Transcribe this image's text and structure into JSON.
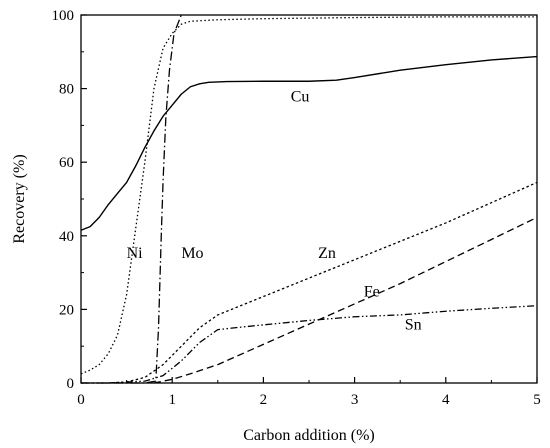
{
  "chart_data": {
    "type": "line",
    "title": "",
    "xlabel": "Carbon addition (%)",
    "ylabel": "Recovery (%)",
    "xlim": [
      0,
      5
    ],
    "ylim": [
      0,
      100
    ],
    "xticks": [
      0,
      1,
      2,
      3,
      4,
      5
    ],
    "yticks": [
      0,
      20,
      40,
      60,
      80,
      100
    ],
    "grid": false,
    "legend": "none",
    "series": [
      {
        "name": "Cu",
        "style": "solid",
        "points": [
          [
            0,
            41.5
          ],
          [
            0.1,
            42.5
          ],
          [
            0.2,
            45
          ],
          [
            0.3,
            48.5
          ],
          [
            0.4,
            51.5
          ],
          [
            0.5,
            54.5
          ],
          [
            0.6,
            59
          ],
          [
            0.7,
            64
          ],
          [
            0.8,
            68.5
          ],
          [
            0.9,
            72.5
          ],
          [
            1.0,
            75.5
          ],
          [
            1.1,
            78.5
          ],
          [
            1.2,
            80.5
          ],
          [
            1.3,
            81.3
          ],
          [
            1.4,
            81.7
          ],
          [
            1.6,
            81.9
          ],
          [
            2.0,
            82
          ],
          [
            2.5,
            82
          ],
          [
            2.8,
            82.3
          ],
          [
            3.0,
            83
          ],
          [
            3.5,
            85
          ],
          [
            4.0,
            86.5
          ],
          [
            4.5,
            87.8
          ],
          [
            5.0,
            88.7
          ]
        ]
      },
      {
        "name": "Ni",
        "style": "dotted",
        "points": [
          [
            0,
            2.5
          ],
          [
            0.1,
            3.5
          ],
          [
            0.2,
            5
          ],
          [
            0.3,
            8
          ],
          [
            0.4,
            13
          ],
          [
            0.5,
            24
          ],
          [
            0.6,
            42
          ],
          [
            0.7,
            60
          ],
          [
            0.8,
            80
          ],
          [
            0.9,
            91
          ],
          [
            1.0,
            95
          ],
          [
            1.1,
            97.5
          ],
          [
            1.2,
            98.3
          ],
          [
            1.5,
            98.7
          ],
          [
            2.0,
            99
          ],
          [
            3.0,
            99.3
          ],
          [
            4.0,
            99.5
          ],
          [
            5.0,
            99.5
          ]
        ]
      },
      {
        "name": "Mo",
        "style": "dash-dot",
        "points": [
          [
            0,
            0
          ],
          [
            0.7,
            0
          ],
          [
            0.82,
            0.5
          ],
          [
            0.85,
            15
          ],
          [
            0.88,
            40
          ],
          [
            0.9,
            55
          ],
          [
            0.93,
            72
          ],
          [
            0.97,
            85
          ],
          [
            1.02,
            95
          ],
          [
            1.1,
            100
          ]
        ]
      },
      {
        "name": "Zn",
        "style": "short-dash",
        "points": [
          [
            0,
            0
          ],
          [
            0.3,
            0
          ],
          [
            0.5,
            0.3
          ],
          [
            0.7,
            1.5
          ],
          [
            0.9,
            5
          ],
          [
            1.1,
            10
          ],
          [
            1.3,
            15
          ],
          [
            1.5,
            18.5
          ],
          [
            1.8,
            21.5
          ],
          [
            2.0,
            23.5
          ],
          [
            2.5,
            28.5
          ],
          [
            3.0,
            33.5
          ],
          [
            3.5,
            38.5
          ],
          [
            4.0,
            43.5
          ],
          [
            4.5,
            49
          ],
          [
            5.0,
            54.5
          ]
        ]
      },
      {
        "name": "Fe",
        "style": "dashed",
        "points": [
          [
            0.8,
            0
          ],
          [
            1.0,
            1
          ],
          [
            1.2,
            2.5
          ],
          [
            1.5,
            5
          ],
          [
            2.0,
            10.5
          ],
          [
            2.5,
            16
          ],
          [
            3.0,
            21.5
          ],
          [
            3.5,
            27
          ],
          [
            4.0,
            33
          ],
          [
            4.5,
            39
          ],
          [
            5.0,
            45
          ]
        ]
      },
      {
        "name": "Sn",
        "style": "dash-dot-dot",
        "points": [
          [
            0.3,
            0
          ],
          [
            0.7,
            0.5
          ],
          [
            0.9,
            2
          ],
          [
            1.1,
            6
          ],
          [
            1.3,
            11
          ],
          [
            1.5,
            14.5
          ],
          [
            1.8,
            15.3
          ],
          [
            2.0,
            15.8
          ],
          [
            2.5,
            17
          ],
          [
            3.0,
            18
          ],
          [
            3.5,
            18.5
          ],
          [
            4.0,
            19.5
          ],
          [
            4.5,
            20.3
          ],
          [
            5.0,
            21
          ]
        ]
      }
    ],
    "annotations": [
      {
        "text": "Cu",
        "x": 2.3,
        "y": 76.5
      },
      {
        "text": "Ni",
        "x": 0.5,
        "y": 34
      },
      {
        "text": "Mo",
        "x": 1.1,
        "y": 34
      },
      {
        "text": "Zn",
        "x": 2.6,
        "y": 34
      },
      {
        "text": "Fe",
        "x": 3.1,
        "y": 23.5
      },
      {
        "text": "Sn",
        "x": 3.55,
        "y": 14.5
      }
    ]
  }
}
